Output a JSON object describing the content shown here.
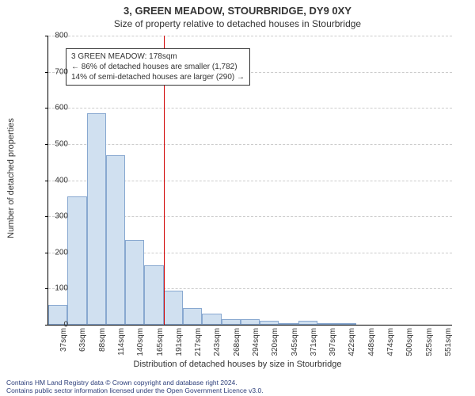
{
  "title": "3, GREEN MEADOW, STOURBRIDGE, DY9 0XY",
  "subtitle": "Size of property relative to detached houses in Stourbridge",
  "chart": {
    "type": "histogram",
    "ylabel": "Number of detached properties",
    "xlabel": "Distribution of detached houses by size in Stourbridge",
    "ylim": [
      0,
      800
    ],
    "ytick_step": 100,
    "bar_color": "#d0e0f0",
    "bar_border": "#88a8d0",
    "background_color": "#ffffff",
    "grid_color": "#cccccc",
    "x_ticks": [
      "37sqm",
      "63sqm",
      "88sqm",
      "114sqm",
      "140sqm",
      "165sqm",
      "191sqm",
      "217sqm",
      "243sqm",
      "268sqm",
      "294sqm",
      "320sqm",
      "345sqm",
      "371sqm",
      "397sqm",
      "422sqm",
      "448sqm",
      "474sqm",
      "500sqm",
      "525sqm",
      "551sqm"
    ],
    "values": [
      55,
      355,
      585,
      470,
      235,
      165,
      95,
      45,
      30,
      15,
      15,
      10,
      5,
      10,
      5,
      3,
      0,
      0,
      0,
      0,
      0
    ],
    "marker": {
      "position_sqm": 178,
      "color": "#d00000",
      "annotation": {
        "line1": "3 GREEN MEADOW: 178sqm",
        "line2": "← 86% of detached houses are smaller (1,782)",
        "line3": "14% of semi-detached houses are larger (290) →"
      }
    }
  },
  "footer": {
    "line1": "Contains HM Land Registry data © Crown copyright and database right 2024.",
    "line2": "Contains public sector information licensed under the Open Government Licence v3.0."
  }
}
